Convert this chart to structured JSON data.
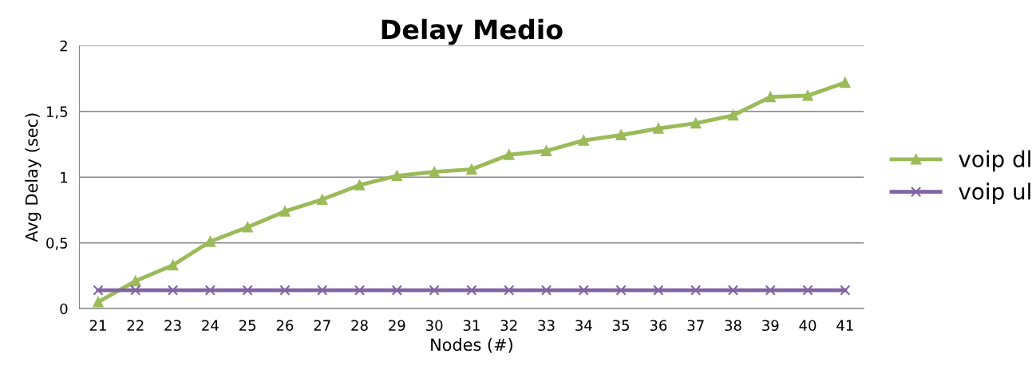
{
  "chart_data": {
    "type": "line",
    "title": "Delay Medio",
    "xlabel": "Nodes (#)",
    "ylabel": "Avg Delay (sec)",
    "categories": [
      "21",
      "22",
      "23",
      "24",
      "25",
      "26",
      "27",
      "28",
      "29",
      "30",
      "31",
      "32",
      "33",
      "34",
      "35",
      "36",
      "37",
      "38",
      "39",
      "40",
      "41"
    ],
    "series": [
      {
        "name": "voip dl",
        "color": "#9bbb59",
        "marker": "triangle",
        "values": [
          0.05,
          0.21,
          0.33,
          0.51,
          0.62,
          0.74,
          0.83,
          0.94,
          1.01,
          1.04,
          1.06,
          1.17,
          1.2,
          1.28,
          1.32,
          1.37,
          1.41,
          1.47,
          1.61,
          1.62,
          1.72
        ]
      },
      {
        "name": "voip ul",
        "color": "#8064a2",
        "marker": "cross",
        "values": [
          0.14,
          0.14,
          0.14,
          0.14,
          0.14,
          0.14,
          0.14,
          0.14,
          0.14,
          0.14,
          0.14,
          0.14,
          0.14,
          0.14,
          0.14,
          0.14,
          0.14,
          0.14,
          0.14,
          0.14,
          0.14
        ]
      }
    ],
    "ylim": [
      0,
      2
    ],
    "yticks": [
      0,
      {
        "value": 0.5,
        "label": "0,5"
      },
      1,
      {
        "value": 1.5,
        "label": "1,5"
      },
      2
    ],
    "grid": "y",
    "legend": "right",
    "line_style": "solid"
  }
}
